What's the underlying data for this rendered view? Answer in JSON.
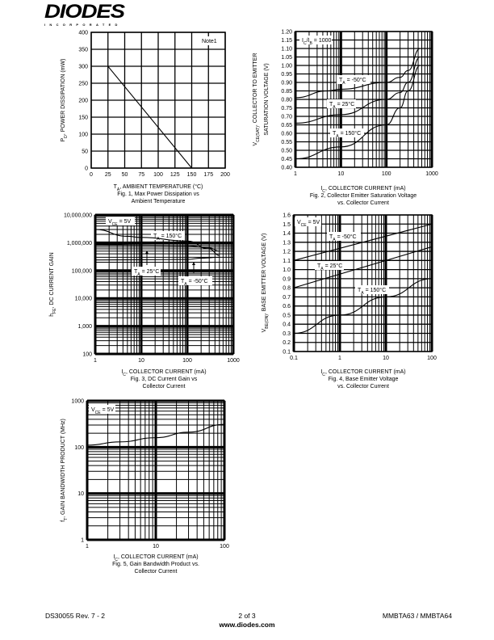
{
  "header": {
    "logo_text": "DIODES",
    "logo_subtext": "INCORPORATED"
  },
  "footer": {
    "doc_id": "DS30055 Rev. 7 - 2",
    "page": "2 of 3",
    "url": "www.diodes.com",
    "part": "MMBTA63 / MMBTA64"
  },
  "chart_data": [
    {
      "type": "line",
      "caption_lines": [
        "Fig. 1, Max Power Dissipation vs",
        "Ambient Temperature"
      ],
      "xlabel": [
        {
          "t": "T"
        },
        {
          "t": "A",
          "sub": true
        },
        {
          "t": ", AMBIENT TEMPERATURE (°C)"
        }
      ],
      "ylabel": [
        [
          {
            "t": "P"
          },
          {
            "t": "D",
            "sub": true
          },
          {
            "t": ", POWER DISSIPATION (mW)"
          }
        ]
      ],
      "xscale": "linear",
      "xlim": [
        0,
        200
      ],
      "xticks": [
        0,
        25,
        50,
        75,
        100,
        125,
        150,
        175,
        200
      ],
      "xtick_labels": [
        "0",
        "25",
        "50",
        "75",
        "100",
        "125",
        "150",
        "175",
        "200"
      ],
      "yscale": "linear",
      "ylim": [
        0,
        400
      ],
      "yticks": [
        0,
        50,
        100,
        150,
        200,
        250,
        300,
        350,
        400
      ],
      "ytick_labels": [
        "0",
        "50",
        "100",
        "150",
        "200",
        "250",
        "300",
        "350",
        "400"
      ],
      "grid": true,
      "series": [
        {
          "name": "PD",
          "x": [
            0,
            25,
            150
          ],
          "y": [
            300,
            300,
            0
          ]
        }
      ],
      "annotations": [
        [
          {
            "t": "Note1"
          }
        ]
      ]
    },
    {
      "type": "line",
      "caption_lines": [
        "Fig. 2, Collector Emitter Saturation Voltage",
        "vs. Collector Current"
      ],
      "xlabel": [
        {
          "t": "I"
        },
        {
          "t": "C",
          "sub": true
        },
        {
          "t": ", COLLECTOR CURRENT (mA)"
        }
      ],
      "ylabel": [
        [
          {
            "t": "V"
          },
          {
            "t": "CE(SAT)",
            "sub": true
          },
          {
            "t": ", COLLECTOR TO EMITTER"
          }
        ],
        [
          {
            "t": "SATURATION VOLTAGE (V)"
          }
        ]
      ],
      "xscale": "log",
      "xlim": [
        1,
        1000
      ],
      "xticks": [
        1,
        10,
        100,
        1000
      ],
      "xtick_labels": [
        "1",
        "10",
        "100",
        "1000"
      ],
      "yscale": "linear",
      "ylim": [
        0.4,
        1.2
      ],
      "yticks": [
        0.4,
        0.45,
        0.5,
        0.55,
        0.6,
        0.65,
        0.7,
        0.75,
        0.8,
        0.85,
        0.9,
        0.95,
        1.0,
        1.05,
        1.1,
        1.15,
        1.2
      ],
      "ytick_labels": [
        "0.40",
        "0.45",
        "0.50",
        "0.55",
        "0.60",
        "0.65",
        "0.70",
        "0.75",
        "0.80",
        "0.85",
        "0.90",
        "0.95",
        "1.00",
        "1.05",
        "1.10",
        "1.15",
        "1.20"
      ],
      "grid": true,
      "series": [
        {
          "name": "TA = -50°C",
          "x": [
            1,
            5,
            10,
            100,
            200,
            300,
            550
          ],
          "y": [
            0.81,
            0.85,
            0.86,
            0.9,
            0.93,
            0.97,
            1.1
          ]
        },
        {
          "name": "TA = 25°C",
          "x": [
            1,
            10,
            100,
            200,
            300,
            550
          ],
          "y": [
            0.66,
            0.71,
            0.8,
            0.84,
            0.9,
            1.05
          ]
        },
        {
          "name": "TA = 150°C",
          "x": [
            1,
            10,
            100,
            200,
            300,
            550
          ],
          "y": [
            0.45,
            0.52,
            0.65,
            0.75,
            0.85,
            1.0
          ]
        }
      ],
      "annotations": [
        [
          {
            "t": "I"
          },
          {
            "t": "C",
            "sub": true
          },
          {
            "t": "/I"
          },
          {
            "t": "B",
            "sub": true
          },
          {
            "t": " = 1000"
          }
        ],
        [
          {
            "t": "T"
          },
          {
            "t": "A",
            "sub": true
          },
          {
            "t": " = -50°C"
          }
        ],
        [
          {
            "t": "T"
          },
          {
            "t": "A",
            "sub": true
          },
          {
            "t": " = 25°C"
          }
        ],
        [
          {
            "t": "T"
          },
          {
            "t": "A",
            "sub": true
          },
          {
            "t": " = 150°C"
          }
        ]
      ]
    },
    {
      "type": "line",
      "caption_lines": [
        "Fig. 3, DC Current Gain vs",
        "Collector Current"
      ],
      "xlabel": [
        {
          "t": "I"
        },
        {
          "t": "C",
          "sub": true
        },
        {
          "t": ", COLLECTOR CURRENT (mA)"
        }
      ],
      "ylabel": [
        [
          {
            "t": "h"
          },
          {
            "t": "FE",
            "sub": true
          },
          {
            "t": ", DC CURRENT GAIN"
          }
        ]
      ],
      "xscale": "log",
      "xlim": [
        1,
        1000
      ],
      "xticks": [
        1,
        10,
        100,
        1000
      ],
      "xtick_labels": [
        "1",
        "10",
        "100",
        "1000"
      ],
      "yscale": "log",
      "ylim": [
        100,
        10000000
      ],
      "yticks": [
        100,
        1000,
        10000,
        100000,
        1000000,
        10000000
      ],
      "ytick_labels": [
        "100",
        "1,000",
        "10,000",
        "100,000",
        "1,000,000",
        "10,000,000"
      ],
      "grid": true,
      "series": [
        {
          "name": "TA = 150°C",
          "x": [
            1,
            5,
            10,
            100,
            300,
            500
          ],
          "y": [
            3000000,
            1700000,
            1550000,
            1150000,
            600000,
            350000
          ]
        },
        {
          "name": "TA = 25°C",
          "x": [
            1,
            10,
            100,
            300,
            500
          ],
          "y": [
            850000,
            820000,
            780000,
            650000,
            500000
          ]
        },
        {
          "name": "TA = -50°C",
          "x": [
            1,
            10,
            100,
            200,
            500
          ],
          "y": [
            240000,
            245000,
            250000,
            280000,
            300000
          ]
        }
      ],
      "annotations": [
        [
          {
            "t": "V"
          },
          {
            "t": "CE",
            "sub": true
          },
          {
            "t": " = 5V"
          }
        ],
        [
          {
            "t": "T"
          },
          {
            "t": "A",
            "sub": true
          },
          {
            "t": " = 150°C"
          }
        ],
        [
          {
            "t": "T"
          },
          {
            "t": "A",
            "sub": true
          },
          {
            "t": " = 25°C"
          }
        ],
        [
          {
            "t": "T"
          },
          {
            "t": "A",
            "sub": true
          },
          {
            "t": " = -50°C"
          }
        ]
      ]
    },
    {
      "type": "line",
      "caption_lines": [
        "Fig. 4, Base Emitter Voltage",
        "vs. Collector Current"
      ],
      "xlabel": [
        {
          "t": "I"
        },
        {
          "t": "C",
          "sub": true
        },
        {
          "t": ", COLLECTOR CURRENT (mA)"
        }
      ],
      "ylabel": [
        [
          {
            "t": "V"
          },
          {
            "t": "BE(ON)",
            "sub": true
          },
          {
            "t": ", BASE EMITTER VOLTAGE (V)"
          }
        ]
      ],
      "xscale": "log",
      "xlim": [
        0.1,
        100
      ],
      "xticks": [
        0.1,
        1,
        10,
        100
      ],
      "xtick_labels": [
        "0.1",
        "1",
        "10",
        "100"
      ],
      "yscale": "linear",
      "ylim": [
        0.1,
        1.6
      ],
      "yticks": [
        0.1,
        0.2,
        0.3,
        0.4,
        0.5,
        0.6,
        0.7,
        0.8,
        0.9,
        1.0,
        1.1,
        1.2,
        1.3,
        1.4,
        1.5,
        1.6
      ],
      "ytick_labels": [
        "0.1",
        "0.2",
        "0.3",
        "0.4",
        "0.5",
        "0.6",
        "0.7",
        "0.8",
        "0.9",
        "1.0",
        "1.1",
        "1.2",
        "1.3",
        "1.4",
        "1.5",
        "1.6"
      ],
      "grid": true,
      "series": [
        {
          "name": "TA = -50°C",
          "x": [
            0.1,
            100
          ],
          "y": [
            1.1,
            1.5
          ]
        },
        {
          "name": "TA = 25°C",
          "x": [
            0.1,
            100
          ],
          "y": [
            0.8,
            1.25
          ]
        },
        {
          "name": "TA = 150°C",
          "x": [
            0.1,
            1,
            10,
            100
          ],
          "y": [
            0.3,
            0.5,
            0.7,
            0.9
          ]
        }
      ],
      "annotations": [
        [
          {
            "t": "V"
          },
          {
            "t": "CE",
            "sub": true
          },
          {
            "t": " = 5V"
          }
        ],
        [
          {
            "t": "T"
          },
          {
            "t": "A",
            "sub": true
          },
          {
            "t": " = -50°C"
          }
        ],
        [
          {
            "t": "T"
          },
          {
            "t": "A",
            "sub": true
          },
          {
            "t": " = 25°C"
          }
        ],
        [
          {
            "t": "T"
          },
          {
            "t": "A",
            "sub": true
          },
          {
            "t": " = 150°C"
          }
        ]
      ]
    },
    {
      "type": "line",
      "caption_lines": [
        "Fig. 5, Gain Bandwidth Product vs.",
        "Collector Current"
      ],
      "xlabel": [
        {
          "t": "I"
        },
        {
          "t": "C",
          "sub": true
        },
        {
          "t": ", COLLECTOR CURRENT (mA)"
        }
      ],
      "ylabel": [
        [
          {
            "t": "f"
          },
          {
            "t": "T",
            "sub": true
          },
          {
            "t": ", GAIN BANDWIDTH PRODUCT (MHz)"
          }
        ]
      ],
      "xscale": "log",
      "xlim": [
        1,
        100
      ],
      "xticks": [
        1,
        10,
        100
      ],
      "xtick_labels": [
        "1",
        "10",
        "100"
      ],
      "yscale": "log",
      "ylim": [
        1,
        1000
      ],
      "yticks": [
        1,
        10,
        100,
        1000
      ],
      "ytick_labels": [
        "1",
        "10",
        "100",
        "1000"
      ],
      "grid": true,
      "series": [
        {
          "name": "VCE = 5V",
          "x": [
            1,
            3,
            10,
            30,
            100
          ],
          "y": [
            110,
            130,
            160,
            210,
            310
          ]
        }
      ],
      "annotations": [
        [
          {
            "t": "V"
          },
          {
            "t": "CE",
            "sub": true
          },
          {
            "t": " = 5V"
          }
        ]
      ]
    }
  ]
}
